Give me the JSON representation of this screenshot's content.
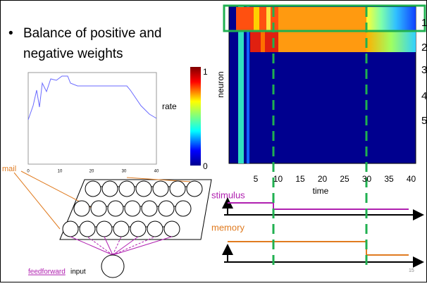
{
  "slide": {
    "bullet": [
      "Balance of positive and",
      "negative weights"
    ],
    "page_number": "15"
  },
  "rate_plot": {
    "label": "rate",
    "xticks": [
      "0",
      "10",
      "20",
      "30",
      "40"
    ]
  },
  "colorbar": {
    "max": "1",
    "min": "0"
  },
  "heatmap": {
    "ylabel": "neuron",
    "xlabel": "time",
    "xticks": [
      "5",
      "10",
      "15",
      "20",
      "25",
      "30",
      "35",
      "40"
    ],
    "row_labels": [
      "1",
      "2",
      "3",
      "4",
      "5"
    ]
  },
  "traces": {
    "stimulus": "stimulus",
    "memory": "memory"
  },
  "network": {
    "mail_label": "mail",
    "input_link": "feedforward",
    "input_text": "input"
  }
}
